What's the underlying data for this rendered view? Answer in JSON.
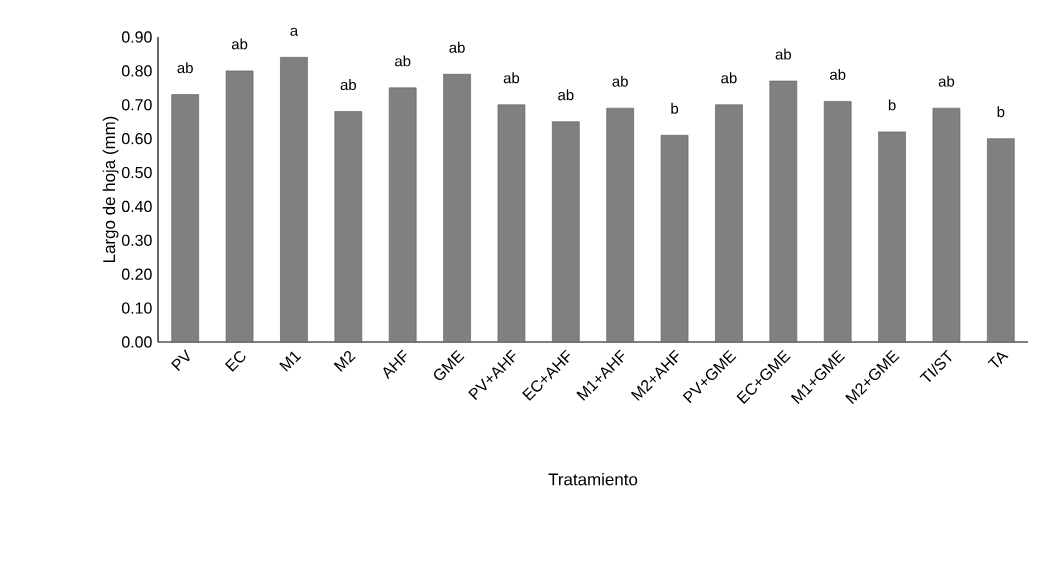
{
  "chart_data": {
    "type": "bar",
    "xlabel": "Tratamiento",
    "ylabel": "Largo de hoja (mm)",
    "categories": [
      "PV",
      "EC",
      "M1",
      "M2",
      "AHF",
      "GME",
      "PV+AHF",
      "EC+AHF",
      "M1+AHF",
      "M2+AHF",
      "PV+GME",
      "EC+GME",
      "M1+GME",
      "M2+GME",
      "TI/ST",
      "TA"
    ],
    "values": [
      0.73,
      0.8,
      0.84,
      0.68,
      0.75,
      0.79,
      0.7,
      0.65,
      0.69,
      0.61,
      0.7,
      0.77,
      0.71,
      0.62,
      0.69,
      0.6
    ],
    "color": "#808080",
    "ylim": [
      0,
      0.9
    ],
    "yticks": [
      {
        "value": 0,
        "label": "0.00"
      },
      {
        "value": 0.1,
        "label": "0.10"
      },
      {
        "value": 0.2,
        "label": "0.20"
      },
      {
        "value": 0.3,
        "label": "0.30"
      },
      {
        "value": 0.4,
        "label": "0.40"
      },
      {
        "value": 0.5,
        "label": "0.50"
      },
      {
        "value": 0.6,
        "label": "0.60"
      },
      {
        "value": 0.7,
        "label": "0.70"
      },
      {
        "value": 0.8,
        "label": "0.80"
      },
      {
        "value": 0.9,
        "label": "0.90"
      }
    ],
    "grid": false,
    "annotations": [
      {
        "text": "ab",
        "x": "PV",
        "y": 0.73
      },
      {
        "text": "ab",
        "x": "EC",
        "y": 0.8
      },
      {
        "text": "a",
        "x": "M1",
        "y": 0.84
      },
      {
        "text": "ab",
        "x": "M2",
        "y": 0.68
      },
      {
        "text": "ab",
        "x": "AHF",
        "y": 0.75
      },
      {
        "text": "ab",
        "x": "GME",
        "y": 0.79
      },
      {
        "text": "ab",
        "x": "PV+AHF",
        "y": 0.7
      },
      {
        "text": "ab",
        "x": "EC+AHF",
        "y": 0.65
      },
      {
        "text": "ab",
        "x": "M1+AHF",
        "y": 0.69
      },
      {
        "text": "b",
        "x": "M2+AHF",
        "y": 0.61
      },
      {
        "text": "ab",
        "x": "PV+GME",
        "y": 0.7
      },
      {
        "text": "ab",
        "x": "EC+GME",
        "y": 0.77
      },
      {
        "text": "ab",
        "x": "M1+GME",
        "y": 0.71
      },
      {
        "text": "b",
        "x": "M2+GME",
        "y": 0.62
      },
      {
        "text": "ab",
        "x": "TI/ST",
        "y": 0.69
      },
      {
        "text": "b",
        "x": "TA",
        "y": 0.6
      }
    ]
  }
}
